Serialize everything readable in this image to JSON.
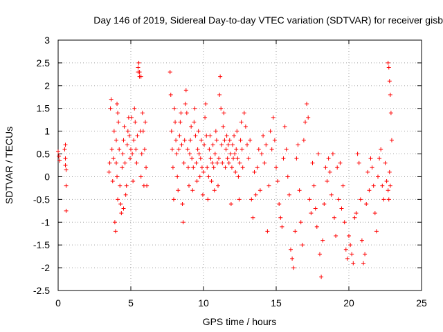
{
  "chart_data": {
    "type": "scatter",
    "title": "Day 146 of 2019, Sidereal Day-to-day VTEC variation (SDTVAR) for receiver gisb",
    "xlabel": "GPS time / hours",
    "ylabel": "SDTVAR / TECUs",
    "xlim": [
      0,
      25
    ],
    "ylim": [
      -2.5,
      3
    ],
    "xticks": [
      0,
      5,
      10,
      15,
      20,
      25
    ],
    "yticks": [
      -2.5,
      -2,
      -1.5,
      -1,
      -0.5,
      0,
      0.5,
      1,
      1.5,
      2,
      2.5,
      3
    ],
    "xtick_labels": [
      "0",
      "5",
      "10",
      "15",
      "20",
      "25"
    ],
    "ytick_labels": [
      "-2.5",
      "-2",
      "-1.5",
      "-1",
      "-0.5",
      "0",
      "0.5",
      "1",
      "1.5",
      "2",
      "2.5",
      "3"
    ],
    "grid": true,
    "marker": "plus",
    "color": "#ff0000",
    "series": [
      {
        "name": "SDTVAR",
        "x": [
          0.0,
          0.05,
          0.1,
          0.45,
          0.5,
          0.5,
          0.55,
          0.55,
          0.5,
          0.55,
          3.5,
          3.55,
          3.6,
          3.65,
          3.7,
          3.75,
          3.8,
          3.85,
          3.9,
          3.95,
          4.0,
          4.05,
          4.1,
          4.15,
          4.2,
          4.25,
          4.3,
          4.35,
          4.4,
          4.45,
          4.5,
          4.55,
          4.6,
          4.65,
          4.7,
          4.75,
          4.8,
          4.85,
          4.9,
          4.95,
          5.0,
          5.05,
          5.1,
          5.15,
          5.2,
          5.25,
          5.3,
          5.35,
          5.4,
          5.45,
          5.5,
          5.55,
          5.6,
          5.65,
          5.7,
          5.75,
          5.8,
          5.85,
          5.9,
          5.95,
          6.0,
          6.05,
          6.1,
          4.0,
          4.05,
          4.1,
          5.5,
          5.6,
          5.7,
          4.5,
          7.7,
          7.75,
          7.8,
          7.85,
          7.9,
          7.95,
          8.0,
          8.05,
          8.1,
          8.15,
          8.2,
          8.25,
          8.3,
          8.35,
          8.4,
          8.45,
          8.5,
          8.55,
          8.6,
          8.65,
          8.7,
          8.75,
          8.8,
          8.85,
          8.9,
          8.95,
          9.0,
          9.05,
          9.1,
          9.15,
          9.2,
          9.25,
          9.3,
          9.35,
          9.4,
          9.45,
          9.5,
          9.55,
          9.6,
          9.65,
          9.7,
          9.75,
          9.8,
          9.85,
          9.9,
          9.95,
          10.0,
          10.05,
          10.1,
          10.15,
          10.2,
          10.25,
          10.3,
          10.35,
          10.4,
          10.45,
          10.5,
          10.55,
          10.6,
          10.65,
          10.7,
          10.75,
          10.8,
          10.85,
          10.9,
          10.95,
          11.0,
          11.05,
          11.1,
          11.15,
          11.2,
          11.25,
          11.3,
          11.35,
          11.4,
          11.45,
          11.5,
          11.55,
          11.6,
          11.65,
          11.7,
          11.75,
          11.8,
          11.85,
          11.9,
          11.95,
          12.0,
          12.05,
          12.1,
          12.15,
          12.2,
          12.25,
          12.3,
          12.35,
          12.4,
          12.45,
          12.5,
          12.55,
          12.6,
          12.65,
          12.7,
          12.8,
          12.9,
          13.0,
          13.1,
          13.2,
          13.3,
          13.4,
          13.5,
          13.6,
          13.7,
          13.8,
          13.9,
          14.0,
          14.1,
          14.2,
          14.3,
          14.4,
          14.5,
          14.6,
          14.7,
          14.8,
          14.9,
          15.0,
          15.1,
          15.2,
          15.3,
          15.4,
          15.5,
          15.6,
          15.7,
          15.8,
          15.9,
          16.0,
          16.1,
          16.2,
          16.3,
          16.4,
          16.5,
          16.6,
          16.7,
          16.8,
          16.9,
          17.0,
          17.1,
          17.2,
          17.3,
          17.4,
          17.5,
          17.6,
          17.7,
          17.8,
          17.9,
          18.0,
          18.1,
          18.2,
          18.3,
          18.4,
          18.5,
          18.6,
          18.7,
          18.8,
          18.9,
          19.0,
          19.1,
          19.2,
          19.3,
          19.4,
          19.5,
          19.6,
          19.7,
          19.8,
          19.9,
          20.0,
          20.1,
          20.2,
          20.3,
          20.4,
          20.5,
          20.6,
          20.7,
          20.8,
          20.9,
          21.0,
          21.1,
          21.2,
          21.3,
          21.4,
          21.5,
          21.6,
          21.7,
          21.8,
          21.9,
          22.0,
          22.1,
          22.2,
          22.3,
          22.4,
          22.5,
          22.6,
          22.7,
          22.75,
          22.8,
          22.85,
          22.9,
          22.95,
          22.7,
          22.75,
          22.8,
          22.85
        ],
        "y": [
          0.55,
          0.45,
          0.35,
          0.6,
          0.4,
          0.25,
          -0.2,
          -0.75,
          0.7,
          0.15,
          0.1,
          0.3,
          1.5,
          1.7,
          0.6,
          -0.1,
          0.4,
          1.0,
          -1.0,
          -1.2,
          0.3,
          0.0,
          1.4,
          1.2,
          0.6,
          -0.2,
          -0.6,
          -0.8,
          0.2,
          0.5,
          0.8,
          1.1,
          0.3,
          -0.4,
          -0.2,
          0.7,
          1.0,
          1.3,
          0.9,
          0.4,
          0.6,
          1.3,
          0.5,
          -0.1,
          0.8,
          1.5,
          1.2,
          0.6,
          0.3,
          0.9,
          2.3,
          2.5,
          2.2,
          1.0,
          0.0,
          0.5,
          1.4,
          1.0,
          -0.2,
          0.6,
          1.2,
          0.2,
          -0.2,
          0.8,
          1.6,
          -0.5,
          2.4,
          2.3,
          2.2,
          -0.7,
          2.3,
          1.8,
          1.0,
          0.6,
          0.2,
          -0.5,
          1.5,
          1.2,
          0.8,
          0.5,
          0.0,
          -0.3,
          0.6,
          0.9,
          1.2,
          1.4,
          0.7,
          -0.6,
          -1.0,
          0.3,
          0.8,
          1.6,
          1.9,
          1.4,
          0.6,
          0.2,
          -0.2,
          0.5,
          0.8,
          1.1,
          0.4,
          -0.3,
          0.2,
          1.2,
          1.5,
          0.9,
          0.3,
          -0.1,
          0.6,
          1.0,
          0.5,
          0.0,
          0.4,
          0.8,
          0.2,
          -0.4,
          0.1,
          0.7,
          1.3,
          1.6,
          0.9,
          0.2,
          -0.5,
          0.0,
          0.6,
          0.9,
          0.4,
          -0.1,
          0.3,
          0.7,
          0.2,
          -0.3,
          0.5,
          1.0,
          0.8,
          0.3,
          -0.2,
          0.4,
          1.8,
          2.2,
          1.5,
          0.7,
          0.3,
          1.1,
          1.4,
          0.8,
          0.2,
          0.6,
          0.9,
          0.4,
          0.7,
          0.3,
          0.8,
          0.5,
          -0.6,
          0.2,
          0.7,
          0.4,
          0.9,
          0.5,
          0.1,
          0.6,
          1.0,
          0.4,
          0.0,
          -0.5,
          0.3,
          0.8,
          1.2,
          0.6,
          0.2,
          1.4,
          1.1,
          0.7,
          0.4,
          0.8,
          -0.5,
          -0.9,
          0.1,
          -0.4,
          0.2,
          0.6,
          -0.3,
          0.5,
          0.9,
          0.3,
          0.7,
          -1.2,
          -0.2,
          1.0,
          0.6,
          1.3,
          0.8,
          0.2,
          -0.1,
          -0.6,
          -0.9,
          -1.1,
          0.4,
          1.1,
          0.6,
          0.0,
          -0.4,
          -1.6,
          -1.8,
          -2.0,
          -1.2,
          0.4,
          0.7,
          -0.3,
          -1.0,
          -1.5,
          0.8,
          1.2,
          1.6,
          1.3,
          -0.5,
          -0.8,
          0.3,
          -0.2,
          -0.7,
          -1.1,
          0.5,
          -1.7,
          -2.2,
          -1.4,
          -0.6,
          0.2,
          -0.1,
          0.4,
          0.1,
          -0.4,
          0.5,
          -0.9,
          -1.3,
          0.2,
          -0.5,
          0.3,
          -0.7,
          -0.2,
          -1.0,
          -1.6,
          -1.8,
          -1.3,
          -1.5,
          -1.7,
          -1.9,
          -0.9,
          -0.8,
          0.5,
          0.3,
          -0.5,
          -1.4,
          -1.9,
          -1.7,
          -0.6,
          0.1,
          -0.3,
          0.4,
          0.2,
          -0.2,
          -0.8,
          -1.2,
          0.0,
          0.4,
          0.6,
          -0.2,
          -0.5,
          0.3,
          -0.1,
          2.5,
          2.4,
          2.1,
          1.8,
          1.4,
          0.8,
          -0.3,
          -0.5,
          0.1,
          -0.2
        ]
      }
    ]
  }
}
